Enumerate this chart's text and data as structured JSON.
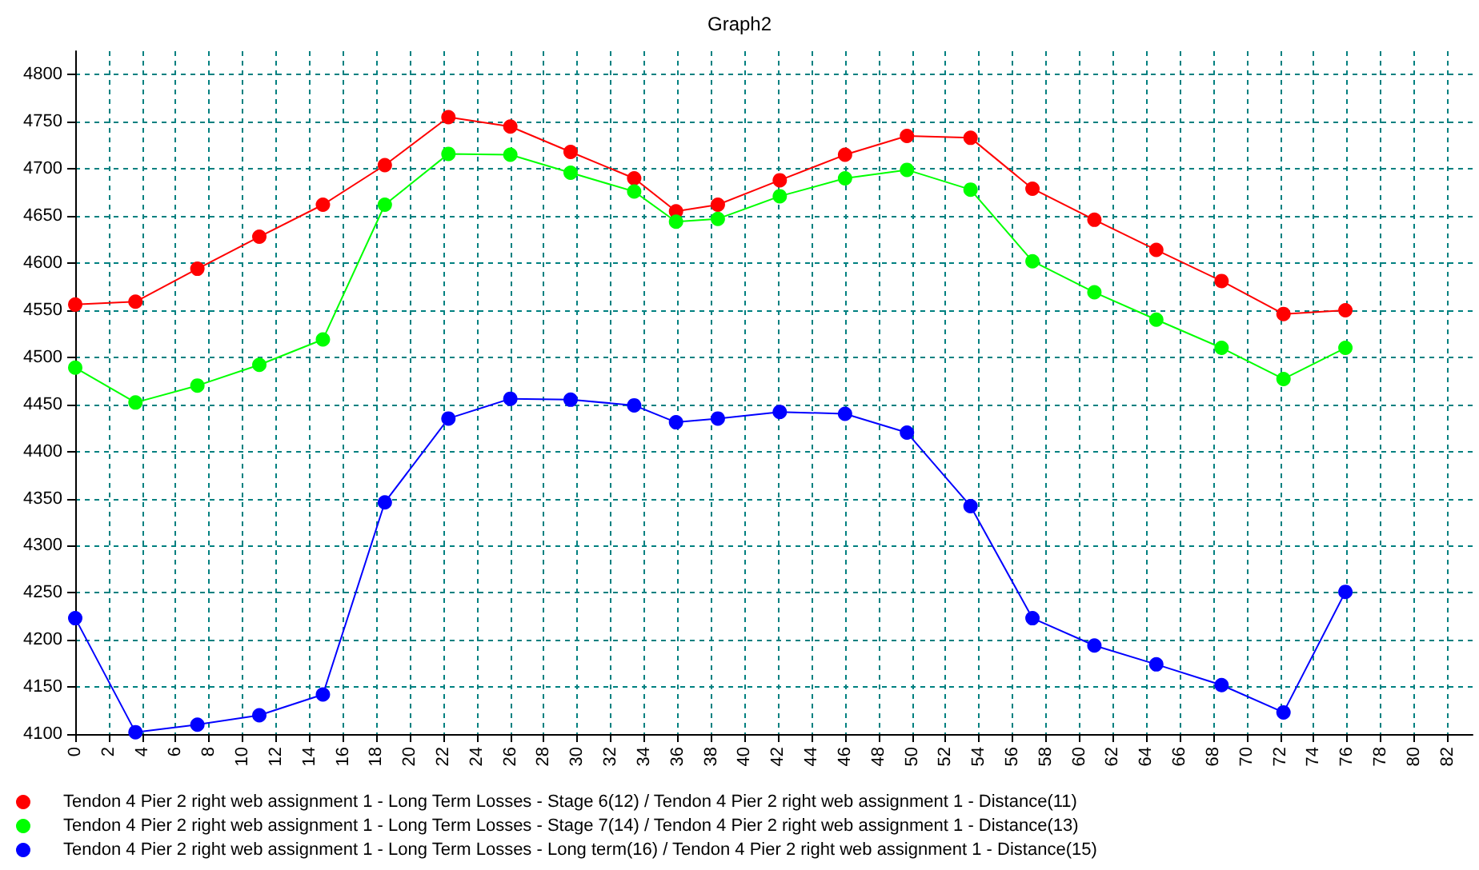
{
  "chart_data": {
    "type": "line",
    "title": "Graph2",
    "x": [
      0,
      3.6,
      7.3,
      11.0,
      14.8,
      18.5,
      22.3,
      26.0,
      29.6,
      33.4,
      35.9,
      38.4,
      42.1,
      46.0,
      49.7,
      53.5,
      57.2,
      60.9,
      64.6,
      68.5,
      72.2,
      75.9
    ],
    "series": [
      {
        "name": "Tendon 4 Pier 2 right web assignment 1 - Long Term Losses - Stage 6(12) / Tendon 4 Pier 2 right web assignment 1 - Distance(11)",
        "color": "#ff0000",
        "values": [
          4556,
          4559,
          4594,
          4628,
          4662,
          4704,
          4755,
          4745,
          4718,
          4690,
          4655,
          4662,
          4688,
          4715,
          4735,
          4733,
          4679,
          4646,
          4614,
          4581,
          4546,
          4550
        ]
      },
      {
        "name": "Tendon 4 Pier 2 right web assignment 1 - Long Term Losses - Stage 7(14) / Tendon 4 Pier 2 right web assignment 1 - Distance(13)",
        "color": "#00ff00",
        "values": [
          4489,
          4452,
          4470,
          4492,
          4519,
          4662,
          4716,
          4715,
          4696,
          4676,
          4644,
          4647,
          4671,
          4690,
          4699,
          4678,
          4602,
          4569,
          4540,
          4510,
          4477,
          4510
        ]
      },
      {
        "name": "Tendon 4 Pier 2 right web assignment 1 - Long Term Losses - Long term(16) / Tendon 4 Pier 2 right web assignment 1 - Distance(15)",
        "color": "#0000ff",
        "values": [
          4223,
          4102,
          4110,
          4120,
          4142,
          4346,
          4435,
          4456,
          4455,
          4449,
          4431,
          4435,
          4442,
          4440,
          4420,
          4342,
          4223,
          4194,
          4174,
          4152,
          4123,
          4251
        ]
      }
    ],
    "xlim": [
      0,
      83.5
    ],
    "xticks": [
      0,
      2,
      4,
      6,
      8,
      10,
      12,
      14,
      16,
      18,
      20,
      22,
      24,
      26,
      28,
      30,
      32,
      34,
      36,
      38,
      40,
      42,
      44,
      46,
      48,
      50,
      52,
      54,
      56,
      58,
      60,
      62,
      64,
      66,
      68,
      70,
      72,
      74,
      76,
      78,
      80,
      82
    ],
    "ylim": [
      4100,
      4825
    ],
    "yticks": [
      4100,
      4150,
      4200,
      4250,
      4300,
      4350,
      4400,
      4450,
      4500,
      4550,
      4600,
      4650,
      4700,
      4750,
      4800
    ],
    "grid": true,
    "legend": "bottom",
    "marker": "circle",
    "line_style": "solid"
  }
}
